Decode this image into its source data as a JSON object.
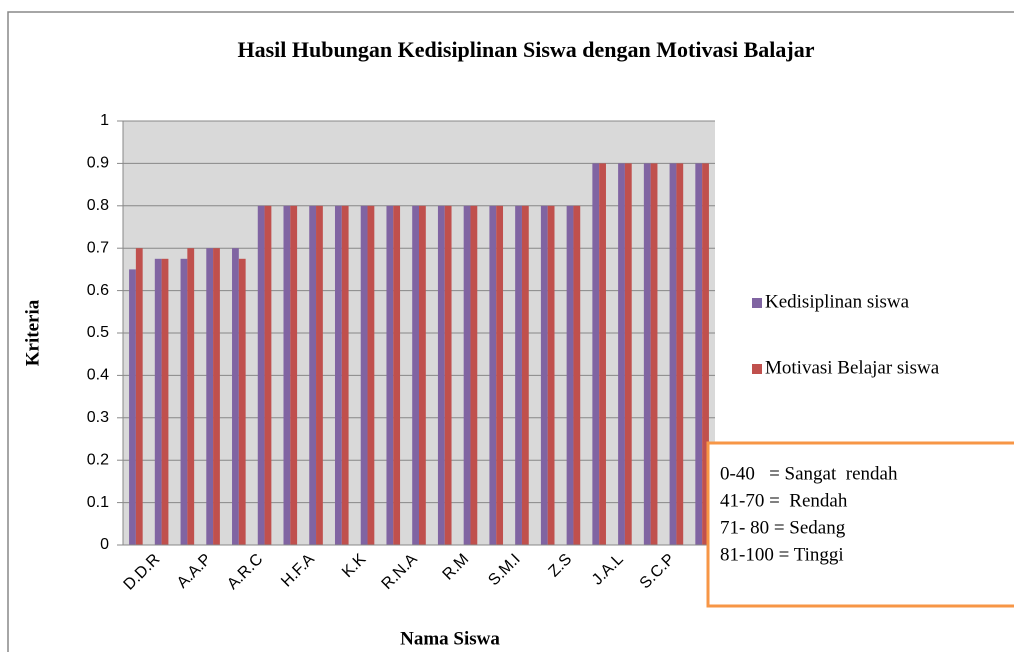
{
  "chart_data": {
    "type": "bar",
    "title": "Hasil Hubungan Kedisiplinan Siswa dengan Motivasi Balajar",
    "x_label": "Nama Siswa",
    "y_label": "Kriteria",
    "categories": [
      null,
      "D.D.R",
      null,
      "A.A.P",
      null,
      "A.R.C",
      null,
      "H.F.A",
      null,
      "K.K",
      null,
      "R.N.A",
      null,
      "R.M",
      null,
      "S.M.I",
      null,
      "Z.S",
      null,
      "J.A.L",
      null,
      "S.C.P",
      null
    ],
    "series": [
      {
        "name": "Kedisiplinan siswa",
        "color": "#8064a2",
        "values": [
          0.65,
          0.675,
          0.675,
          0.7,
          0.7,
          0.8,
          0.8,
          0.8,
          0.8,
          0.8,
          0.8,
          0.8,
          0.8,
          0.8,
          0.8,
          0.8,
          0.8,
          0.8,
          0.9,
          0.9,
          0.9,
          0.9,
          0.9
        ]
      },
      {
        "name": "Motivasi Belajar siswa",
        "color": "#c0504d",
        "values": [
          0.7,
          0.675,
          0.7,
          0.7,
          0.675,
          0.8,
          0.8,
          0.8,
          0.8,
          0.8,
          0.8,
          0.8,
          0.8,
          0.8,
          0.8,
          0.8,
          0.8,
          0.8,
          0.9,
          0.9,
          0.9,
          0.9,
          0.9
        ]
      }
    ],
    "ylim": [
      0,
      1
    ],
    "yticks": [
      0,
      0.1,
      0.2,
      0.3,
      0.4,
      0.5,
      0.6,
      0.7,
      0.8,
      0.9,
      1
    ],
    "grid": true,
    "legend": "right",
    "annotation": [
      "0-40   = Sangat  rendah",
      "41-70 =  Rendah",
      "71- 80 = Sedang",
      "81-100 = Tinggi"
    ]
  }
}
